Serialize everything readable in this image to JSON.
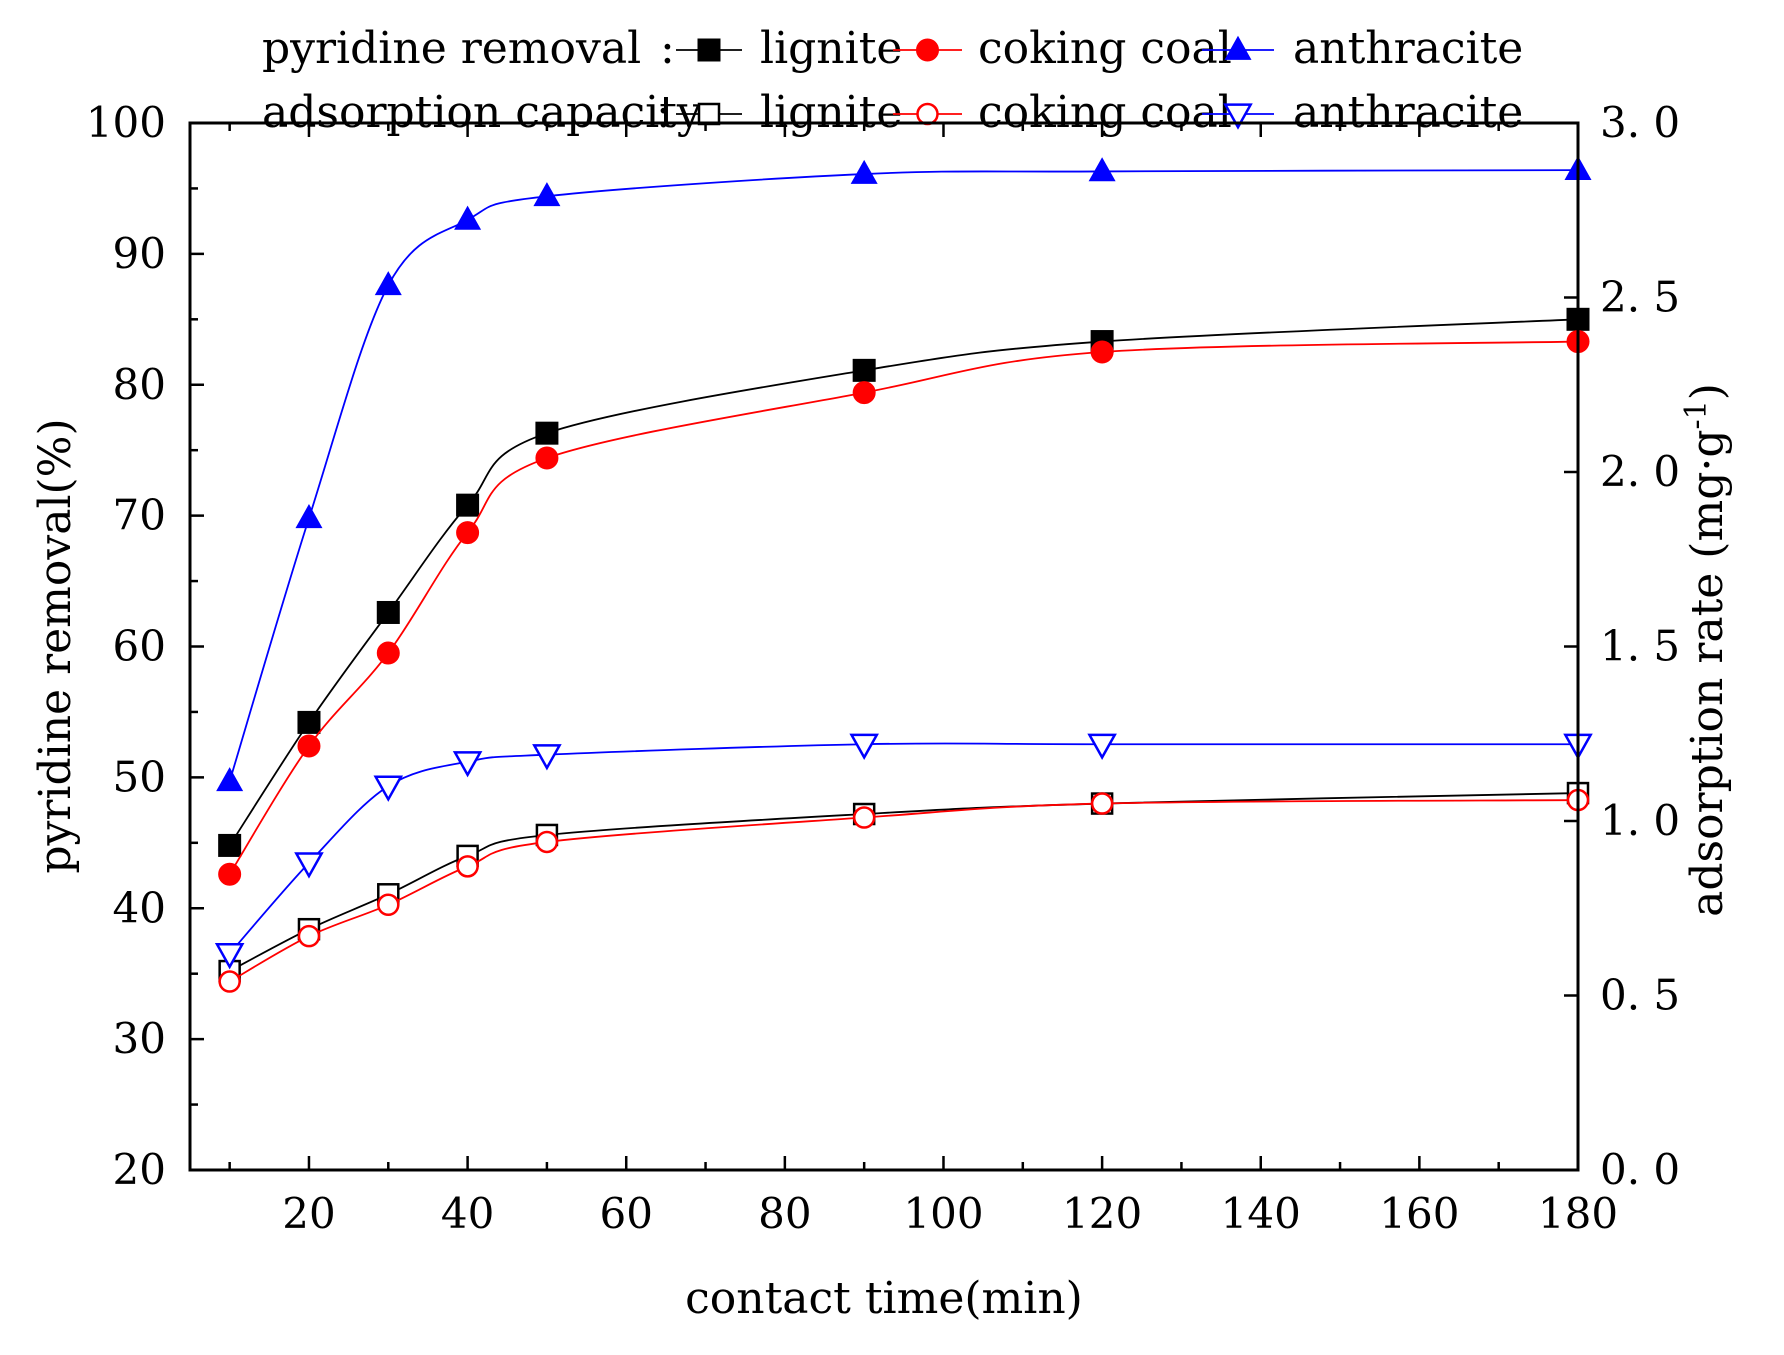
{
  "chart_data": {
    "type": "line",
    "x_label": "contact time(min)",
    "y_label_left": "pyridine removal(%)",
    "y_label_right": "adsorption rate (mg·g",
    "y_label_right_sup": "-1",
    "y_label_right_close": ")",
    "x_range": [
      5,
      180
    ],
    "y_left_range": [
      20,
      100
    ],
    "y_right_range": [
      0.0,
      3.0
    ],
    "x_ticks": [
      20,
      40,
      60,
      80,
      100,
      120,
      140,
      160,
      180
    ],
    "y_left_ticks": [
      20,
      30,
      40,
      50,
      60,
      70,
      80,
      90,
      100
    ],
    "y_right_ticks": [
      "0. 0",
      "0. 5",
      "1. 0",
      "1. 5",
      "2. 0",
      "2. 5",
      "3. 0"
    ],
    "y_right_tick_values": [
      0.0,
      0.5,
      1.0,
      1.5,
      2.0,
      2.5,
      3.0
    ],
    "x": [
      10,
      20,
      30,
      40,
      50,
      90,
      120,
      180
    ],
    "legend": {
      "row1_label": "pyridine removal",
      "row1_sep": ":",
      "row2_label": "adsorption capacity",
      "row2_sep": ":"
    },
    "series": [
      {
        "name": "lignite",
        "group": "pyridine removal",
        "axis": "left",
        "color": "#000000",
        "marker": "square-filled",
        "values": [
          44.8,
          54.2,
          62.6,
          70.8,
          76.3,
          81.1,
          83.3,
          85.0
        ]
      },
      {
        "name": "coking coal",
        "group": "pyridine removal",
        "axis": "left",
        "color": "#ff0000",
        "marker": "circle-filled",
        "values": [
          42.6,
          52.4,
          59.5,
          68.7,
          74.4,
          79.4,
          82.5,
          83.3
        ]
      },
      {
        "name": "anthracite",
        "group": "pyridine removal",
        "axis": "left",
        "color": "#0000ff",
        "marker": "triangle-up-filled",
        "values": [
          49.7,
          69.8,
          87.6,
          92.6,
          94.4,
          96.1,
          96.3,
          96.4
        ]
      },
      {
        "name": "lignite",
        "group": "adsorption capacity",
        "axis": "right",
        "color": "#000000",
        "marker": "square-open",
        "values": [
          0.57,
          0.69,
          0.79,
          0.9,
          0.96,
          1.02,
          1.05,
          1.08
        ]
      },
      {
        "name": "coking coal",
        "group": "adsorption capacity",
        "axis": "right",
        "color": "#ff0000",
        "marker": "circle-open",
        "values": [
          0.54,
          0.67,
          0.76,
          0.87,
          0.94,
          1.01,
          1.05,
          1.06
        ]
      },
      {
        "name": "anthracite",
        "group": "adsorption capacity",
        "axis": "right",
        "color": "#0000ff",
        "marker": "triangle-down-open",
        "values": [
          0.62,
          0.88,
          1.1,
          1.17,
          1.19,
          1.22,
          1.22,
          1.22
        ]
      }
    ]
  }
}
